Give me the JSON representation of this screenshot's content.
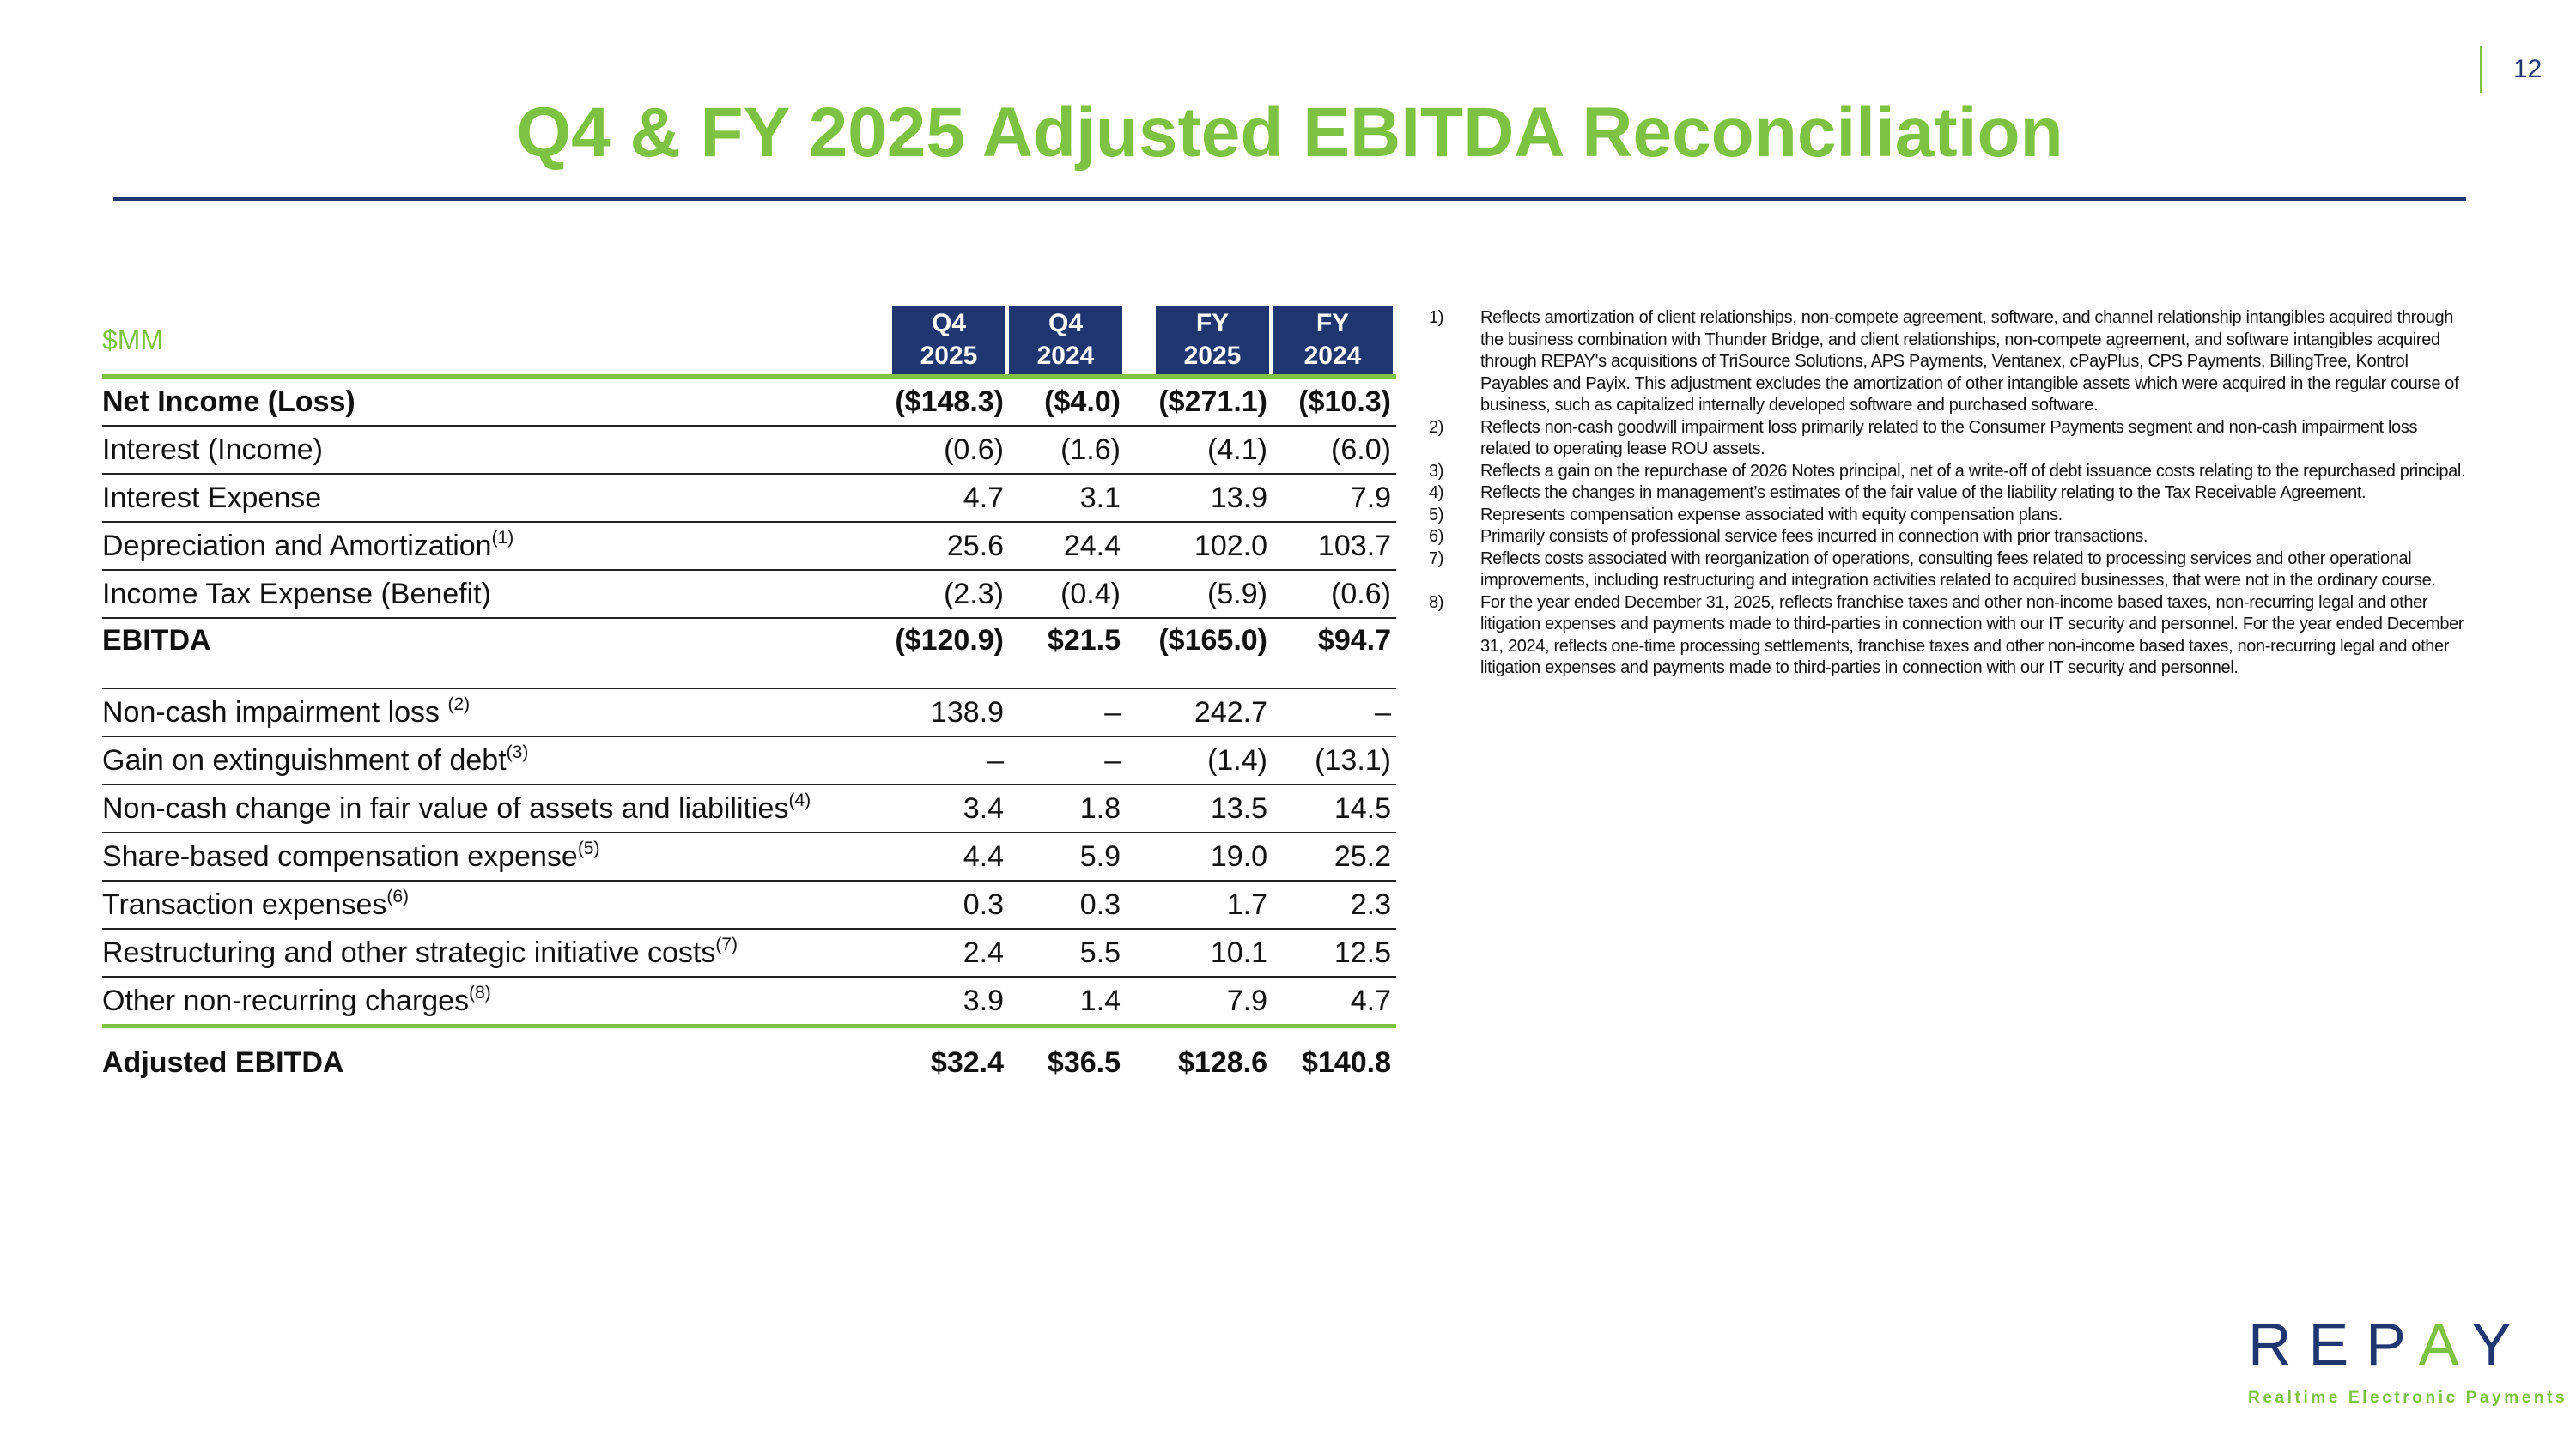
{
  "page_number": "12",
  "title": "Q4 & FY 2025 Adjusted EBITDA Reconciliation",
  "table": {
    "unit_label": "$MM",
    "columns": [
      {
        "line1": "Q4",
        "line2": "2025"
      },
      {
        "line1": "Q4",
        "line2": "2024"
      },
      {
        "line1": "FY",
        "line2": "2025"
      },
      {
        "line1": "FY",
        "line2": "2024"
      }
    ],
    "rows": [
      {
        "label": "Net Income (Loss)",
        "sup": "",
        "values": [
          "($148.3)",
          "($4.0)",
          "($271.1)",
          "($10.3)"
        ]
      },
      {
        "label": "Interest (Income)",
        "sup": "",
        "values": [
          "(0.6)",
          "(1.6)",
          "(4.1)",
          "(6.0)"
        ]
      },
      {
        "label": "Interest Expense",
        "sup": "",
        "values": [
          "4.7",
          "3.1",
          "13.9",
          "7.9"
        ]
      },
      {
        "label": "Depreciation and Amortization",
        "sup": "(1)",
        "values": [
          "25.6",
          "24.4",
          "102.0",
          "103.7"
        ]
      },
      {
        "label": "Income Tax Expense (Benefit)",
        "sup": "",
        "values": [
          "(2.3)",
          "(0.4)",
          "(5.9)",
          "(0.6)"
        ]
      },
      {
        "label": "EBITDA",
        "sup": "",
        "values": [
          "($120.9)",
          "$21.5",
          "($165.0)",
          "$94.7"
        ]
      },
      {
        "label": "Non-cash impairment loss ",
        "sup": "(2)",
        "values": [
          "138.9",
          "–",
          "242.7",
          "–"
        ]
      },
      {
        "label": "Gain on extinguishment of debt",
        "sup": "(3)",
        "values": [
          "–",
          "–",
          "(1.4)",
          "(13.1)"
        ]
      },
      {
        "label": "Non-cash change in fair value of assets and liabilities",
        "sup": "(4)",
        "values": [
          "3.4",
          "1.8",
          "13.5",
          "14.5"
        ]
      },
      {
        "label": "Share-based compensation expense",
        "sup": "(5)",
        "values": [
          "4.4",
          "5.9",
          "19.0",
          "25.2"
        ]
      },
      {
        "label": "Transaction expenses",
        "sup": "(6)",
        "values": [
          "0.3",
          "0.3",
          "1.7",
          "2.3"
        ]
      },
      {
        "label": "Restructuring and other strategic initiative costs",
        "sup": "(7)",
        "values": [
          "2.4",
          "5.5",
          "10.1",
          "12.5"
        ]
      },
      {
        "label": "Other non-recurring charges",
        "sup": "(8)",
        "values": [
          "3.9",
          "1.4",
          "7.9",
          "4.7"
        ]
      },
      {
        "label": "Adjusted EBITDA",
        "sup": "",
        "values": [
          "$32.4",
          "$36.5",
          "$128.6",
          "$140.8"
        ]
      }
    ]
  },
  "footnotes": [
    {
      "num": "1)",
      "text": "Reflects amortization of client relationships, non-compete agreement, software, and channel relationship intangibles acquired through the business combination with Thunder Bridge, and client relationships, non-compete agreement, and software intangibles acquired through REPAY's acquisitions of TriSource Solutions, APS Payments, Ventanex, cPayPlus, CPS Payments, BillingTree, Kontrol Payables and Payix. This adjustment excludes the amortization of other intangible assets which were acquired in the regular course of business, such as capitalized internally developed software and purchased software."
    },
    {
      "num": "2)",
      "text": "Reflects non-cash goodwill impairment loss primarily related to the Consumer Payments segment and non-cash impairment loss related to operating lease ROU assets."
    },
    {
      "num": "3)",
      "text": "Reflects a gain on the repurchase of 2026 Notes principal, net of a write-off of debt issuance costs relating to the repurchased principal."
    },
    {
      "num": "4)",
      "text": "Reflects the changes in management’s estimates of the fair value of the liability relating to the Tax Receivable Agreement."
    },
    {
      "num": "5)",
      "text": "Represents compensation expense associated with equity compensation plans."
    },
    {
      "num": "6)",
      "text": "Primarily consists of professional service fees incurred in connection with prior transactions."
    },
    {
      "num": "7)",
      "text": "Reflects costs associated with reorganization of operations, consulting fees related to processing services and other operational improvements, including restructuring and integration activities related to acquired businesses, that were not in the ordinary course."
    },
    {
      "num": "8)",
      "text": "For the year ended December 31, 2025, reflects franchise taxes and other non-income based taxes, non-recurring legal and other litigation expenses and payments made to third-parties in connection with our IT security and personnel. For the year ended December 31, 2024, reflects one-time processing settlements, franchise taxes and other non-income based taxes, non-recurring legal and other litigation expenses and payments made to third-parties in connection with our IT security and personnel."
    }
  ],
  "logo": {
    "wordmark": "REPAY",
    "tagline": "Realtime Electronic Payments"
  },
  "colors": {
    "brand_green": "#7dc242",
    "brand_navy": "#1f3670"
  }
}
